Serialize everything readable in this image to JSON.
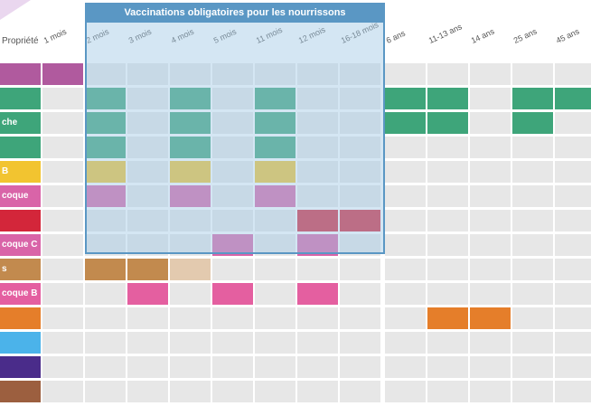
{
  "box_title": "Vaccinations obligatoires pour les nourrissons",
  "columns": [
    "1 mois",
    "2 mois",
    "3 mois",
    "4 mois",
    "5 mois",
    "11 mois",
    "12 mois",
    "16-18 mois",
    "6 ans",
    "11-13 ans",
    "14 ans",
    "25 ans",
    "45 ans"
  ],
  "column_header_first": "Propriété",
  "rows": [
    {
      "label": "",
      "color": "#b05a9e",
      "cells": [
        1,
        0,
        0,
        0,
        0,
        0,
        0,
        0,
        0,
        0,
        0,
        0,
        0
      ]
    },
    {
      "label": "",
      "color": "#3ea57a",
      "cells": [
        0,
        1,
        0,
        1,
        0,
        1,
        0,
        0,
        1,
        1,
        0,
        1,
        1
      ]
    },
    {
      "label": "che",
      "color": "#3ea57a",
      "cells": [
        0,
        1,
        0,
        1,
        0,
        1,
        0,
        0,
        1,
        1,
        0,
        1,
        0
      ]
    },
    {
      "label": "",
      "color": "#3ea57a",
      "cells": [
        0,
        1,
        0,
        1,
        0,
        1,
        0,
        0,
        0,
        0,
        0,
        0,
        0
      ]
    },
    {
      "label": "B",
      "color": "#f2c430",
      "cells": [
        0,
        1,
        0,
        1,
        0,
        1,
        0,
        0,
        0,
        0,
        0,
        0,
        0
      ]
    },
    {
      "label": "coque",
      "color": "#d964a8",
      "cells": [
        0,
        1,
        0,
        1,
        0,
        1,
        0,
        0,
        0,
        0,
        0,
        0,
        0
      ]
    },
    {
      "label": "",
      "color": "#d3263a",
      "cells": [
        0,
        0,
        0,
        0,
        0,
        0,
        1,
        1,
        0,
        0,
        0,
        0,
        0
      ]
    },
    {
      "label": "coque C",
      "color": "#d964a8",
      "cells": [
        0,
        0,
        0,
        0,
        1,
        0,
        1,
        0,
        0,
        0,
        0,
        0,
        0
      ]
    },
    {
      "label": "s",
      "color": "#c28a4e",
      "cells": [
        0,
        1,
        1,
        0.5,
        0,
        0,
        0,
        0,
        0,
        0,
        0,
        0,
        0
      ]
    },
    {
      "label": "coque B",
      "color": "#e45fa0",
      "cells": [
        0,
        0,
        1,
        0,
        1,
        0,
        1,
        0,
        0,
        0,
        0,
        0,
        0
      ]
    },
    {
      "label": "",
      "color": "#e57e2a",
      "cells": [
        0,
        0,
        0,
        0,
        0,
        0,
        0,
        0,
        0,
        1,
        1,
        0,
        0
      ]
    },
    {
      "label": "",
      "color": "#4bb3ea",
      "cells": [
        0,
        0,
        0,
        0,
        0,
        0,
        0,
        0,
        0,
        0,
        0,
        0,
        0
      ]
    },
    {
      "label": "",
      "color": "#4a2c8a",
      "cells": [
        0,
        0,
        0,
        0,
        0,
        0,
        0,
        0,
        0,
        0,
        0,
        0,
        0
      ]
    },
    {
      "label": "",
      "color": "#9c5f3f",
      "cells": [
        0,
        0,
        0,
        0,
        0,
        0,
        0,
        0,
        0,
        0,
        0,
        0,
        0
      ]
    }
  ],
  "colors": {
    "empty": "#e7e7e7",
    "box_border": "#5a97c4",
    "label_bg_first": "#b05a9e"
  }
}
